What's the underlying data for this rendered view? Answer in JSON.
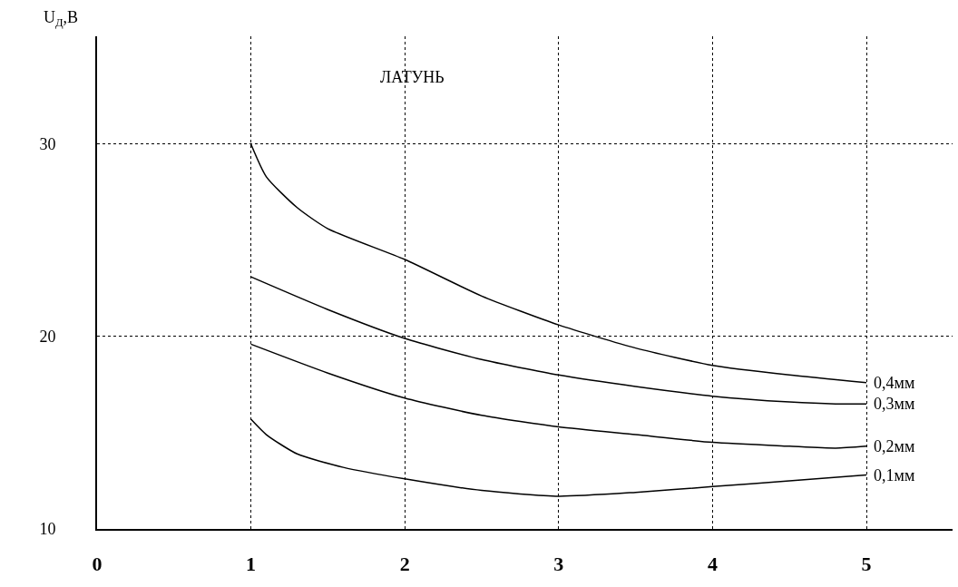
{
  "chart_data": {
    "type": "line",
    "title": "ЛАТУНЬ",
    "ylabel": "U$_{Д}$,В",
    "xlim": [
      0,
      5.56
    ],
    "ylim": [
      10,
      35.6
    ],
    "xticks": [
      0,
      1,
      2,
      3,
      4,
      5
    ],
    "yticks": [
      10,
      20,
      30
    ],
    "grid": true,
    "legend": false,
    "marker": "none",
    "line_style": "solid",
    "series": [
      {
        "name": "0,4мм",
        "color": "#000000",
        "x": [
          1,
          1.1,
          1.3,
          1.5,
          2,
          2.5,
          3,
          3.5,
          4,
          4.5,
          5
        ],
        "values": [
          30,
          28.3,
          26.7,
          25.6,
          24,
          22.1,
          20.6,
          19.4,
          18.5,
          18,
          17.6
        ]
      },
      {
        "name": "0,3мм",
        "color": "#000000",
        "x": [
          1,
          1.5,
          2,
          2.5,
          3,
          3.5,
          4,
          4.5,
          4.8,
          5
        ],
        "values": [
          23.1,
          21.4,
          19.9,
          18.8,
          18,
          17.4,
          16.9,
          16.6,
          16.5,
          16.5
        ]
      },
      {
        "name": "0,2мм",
        "color": "#000000",
        "x": [
          1,
          1.5,
          2,
          2.5,
          3,
          3.5,
          4,
          4.5,
          4.8,
          5
        ],
        "values": [
          19.6,
          18.1,
          16.8,
          15.9,
          15.3,
          14.9,
          14.5,
          14.3,
          14.2,
          14.3
        ]
      },
      {
        "name": "0,1мм",
        "color": "#000000",
        "x": [
          1,
          1.1,
          1.3,
          1.6,
          2,
          2.5,
          3,
          3.5,
          4,
          4.5,
          5
        ],
        "values": [
          15.7,
          14.9,
          13.9,
          13.2,
          12.6,
          12,
          11.7,
          11.9,
          12.2,
          12.5,
          12.8
        ]
      }
    ]
  }
}
